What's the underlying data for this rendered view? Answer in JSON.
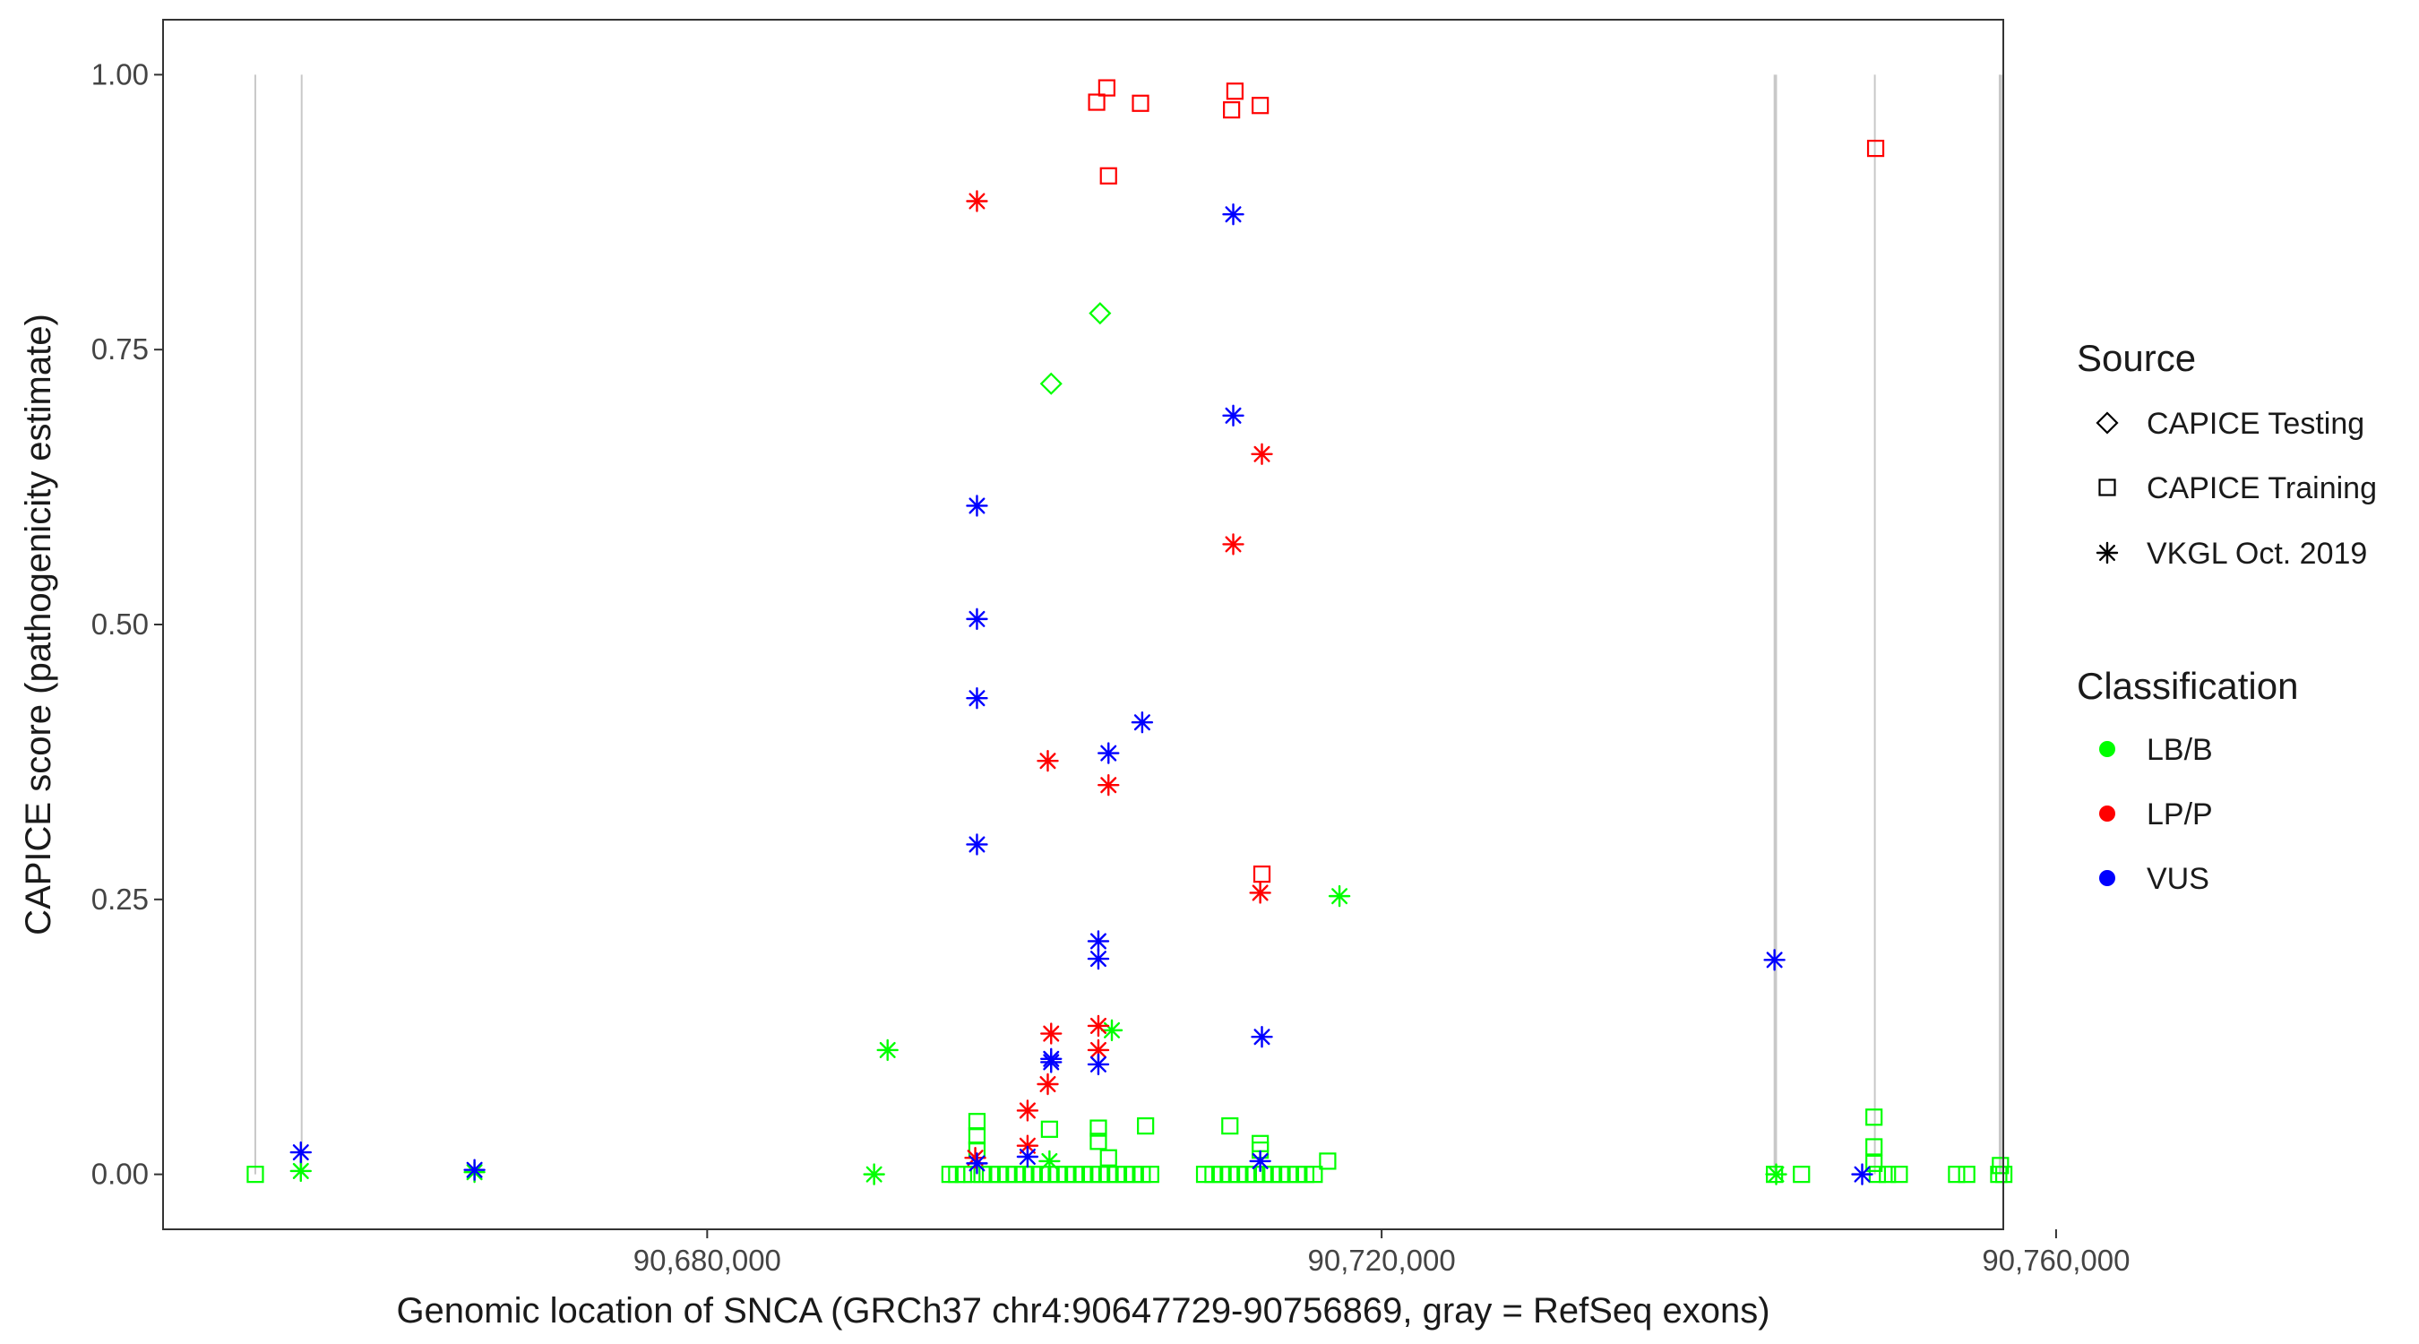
{
  "chart_data": {
    "type": "scatter",
    "xlabel": "Genomic location of SNCA (GRCh37 chr4:90647729-90756869, gray = RefSeq exons)",
    "ylabel": "CAPICE score (pathogenicity estimate)",
    "xlim": [
      90647729,
      90756869
    ],
    "ylim": [
      -0.05,
      1.05
    ],
    "x_ticks": [
      90680000,
      90720000,
      90760000
    ],
    "x_tick_labels": [
      "90,680,000",
      "90,720,000",
      "90,760,000"
    ],
    "y_ticks": [
      0,
      0.25,
      0.5,
      0.75,
      1.0
    ],
    "y_tick_labels": [
      "0.00",
      "0.25",
      "0.50",
      "0.75",
      "1.00"
    ],
    "grid": false,
    "exons": [
      {
        "start": 90653150,
        "end": 90653250
      },
      {
        "start": 90655900,
        "end": 90656000
      },
      {
        "start": 90743250,
        "end": 90743450
      },
      {
        "start": 90749200,
        "end": 90749300
      },
      {
        "start": 90756600,
        "end": 90756800
      }
    ],
    "exon_color": "#c8c8c8",
    "legend": {
      "source_title": "Source",
      "source_items": [
        {
          "label": "CAPICE Testing",
          "shape": "diamond"
        },
        {
          "label": "CAPICE Training",
          "shape": "square"
        },
        {
          "label": "VKGL Oct. 2019",
          "shape": "asterisk"
        }
      ],
      "class_title": "Classification",
      "class_items": [
        {
          "label": "LB/B",
          "color": "#00ff00"
        },
        {
          "label": "LP/P",
          "color": "#ff0000"
        },
        {
          "label": "VUS",
          "color": "#0000ff"
        }
      ]
    },
    "series": [
      {
        "name": "CAPICE Testing / LB/B",
        "shape": "diamond",
        "color": "#00ff00",
        "points": [
          [
            90703300,
            0.783
          ],
          [
            90700400,
            0.719
          ]
        ]
      },
      {
        "name": "CAPICE Training / LP/P",
        "shape": "square",
        "color": "#ff0000",
        "points": [
          [
            90703700,
            0.988
          ],
          [
            90703100,
            0.975
          ],
          [
            90705700,
            0.974
          ],
          [
            90711300,
            0.985
          ],
          [
            90711100,
            0.968
          ],
          [
            90712800,
            0.972
          ],
          [
            90703800,
            0.908
          ],
          [
            90749300,
            0.933
          ],
          [
            90712900,
            0.273
          ]
        ]
      },
      {
        "name": "CAPICE Training / LB/B",
        "shape": "square",
        "color": "#00ff00",
        "points": [
          [
            90653200,
            0.0
          ],
          [
            90696000,
            0.048
          ],
          [
            90696000,
            0.035
          ],
          [
            90696000,
            0.022
          ],
          [
            90700300,
            0.041
          ],
          [
            90703200,
            0.042
          ],
          [
            90703200,
            0.03
          ],
          [
            90703800,
            0.015
          ],
          [
            90706000,
            0.044
          ],
          [
            90711000,
            0.044
          ],
          [
            90712800,
            0.028
          ],
          [
            90712800,
            0.022
          ],
          [
            90716800,
            0.012
          ],
          [
            90749200,
            0.052
          ],
          [
            90749200,
            0.025
          ],
          [
            90749200,
            0.01
          ],
          [
            90756700,
            0.008
          ],
          [
            90694400,
            0.0
          ],
          [
            90694800,
            0.0
          ],
          [
            90695200,
            0.0
          ],
          [
            90695700,
            0.0
          ],
          [
            90696300,
            0.0
          ],
          [
            90696800,
            0.0
          ],
          [
            90697300,
            0.0
          ],
          [
            90697800,
            0.0
          ],
          [
            90698300,
            0.0
          ],
          [
            90698800,
            0.0
          ],
          [
            90699300,
            0.0
          ],
          [
            90699800,
            0.0
          ],
          [
            90700300,
            0.0
          ],
          [
            90700800,
            0.0
          ],
          [
            90701300,
            0.0
          ],
          [
            90701800,
            0.0
          ],
          [
            90702300,
            0.0
          ],
          [
            90702800,
            0.0
          ],
          [
            90703300,
            0.0
          ],
          [
            90703800,
            0.0
          ],
          [
            90704300,
            0.0
          ],
          [
            90704800,
            0.0
          ],
          [
            90705300,
            0.0
          ],
          [
            90705800,
            0.0
          ],
          [
            90706300,
            0.0
          ],
          [
            90709500,
            0.0
          ],
          [
            90710000,
            0.0
          ],
          [
            90710500,
            0.0
          ],
          [
            90711000,
            0.0
          ],
          [
            90711500,
            0.0
          ],
          [
            90712000,
            0.0
          ],
          [
            90712500,
            0.0
          ],
          [
            90713000,
            0.0
          ],
          [
            90713500,
            0.0
          ],
          [
            90714000,
            0.0
          ],
          [
            90714500,
            0.0
          ],
          [
            90715000,
            0.0
          ],
          [
            90715500,
            0.0
          ],
          [
            90716000,
            0.0
          ],
          [
            90743300,
            0.0
          ],
          [
            90744900,
            0.0
          ],
          [
            90749400,
            0.0
          ],
          [
            90750000,
            0.0
          ],
          [
            90750700,
            0.0
          ],
          [
            90754100,
            0.0
          ],
          [
            90754700,
            0.0
          ],
          [
            90756600,
            0.0
          ],
          [
            90756900,
            0.0
          ]
        ]
      },
      {
        "name": "VKGL Oct. 2019 / LB/B",
        "shape": "asterisk",
        "color": "#00ff00",
        "points": [
          [
            90655900,
            0.003
          ],
          [
            90666200,
            0.002
          ],
          [
            90690700,
            0.113
          ],
          [
            90689900,
            0.0
          ],
          [
            90700300,
            0.012
          ],
          [
            90704000,
            0.131
          ],
          [
            90717500,
            0.253
          ],
          [
            90743400,
            0.0
          ]
        ]
      },
      {
        "name": "VKGL Oct. 2019 / LP/P",
        "shape": "asterisk",
        "color": "#ff0000",
        "points": [
          [
            90696000,
            0.885
          ],
          [
            90712900,
            0.655
          ],
          [
            90711200,
            0.573
          ],
          [
            90700200,
            0.376
          ],
          [
            90703800,
            0.354
          ],
          [
            90712800,
            0.256
          ],
          [
            90703200,
            0.135
          ],
          [
            90700400,
            0.128
          ],
          [
            90703200,
            0.113
          ],
          [
            90699000,
            0.058
          ],
          [
            90700200,
            0.082
          ],
          [
            90699000,
            0.026
          ],
          [
            90695900,
            0.015
          ]
        ]
      },
      {
        "name": "VKGL Oct. 2019 / VUS",
        "shape": "asterisk",
        "color": "#0000ff",
        "points": [
          [
            90655900,
            0.02
          ],
          [
            90666200,
            0.004
          ],
          [
            90696000,
            0.608
          ],
          [
            90696000,
            0.505
          ],
          [
            90696000,
            0.433
          ],
          [
            90696000,
            0.3
          ],
          [
            90696000,
            0.01
          ],
          [
            90699000,
            0.016
          ],
          [
            90703800,
            0.383
          ],
          [
            90705800,
            0.411
          ],
          [
            90703200,
            0.212
          ],
          [
            90703200,
            0.196
          ],
          [
            90700400,
            0.105
          ],
          [
            90700400,
            0.102
          ],
          [
            90703200,
            0.1
          ],
          [
            90711200,
            0.873
          ],
          [
            90711200,
            0.69
          ],
          [
            90712900,
            0.125
          ],
          [
            90712800,
            0.012
          ],
          [
            90743300,
            0.195
          ],
          [
            90748500,
            0.0
          ]
        ]
      }
    ]
  }
}
